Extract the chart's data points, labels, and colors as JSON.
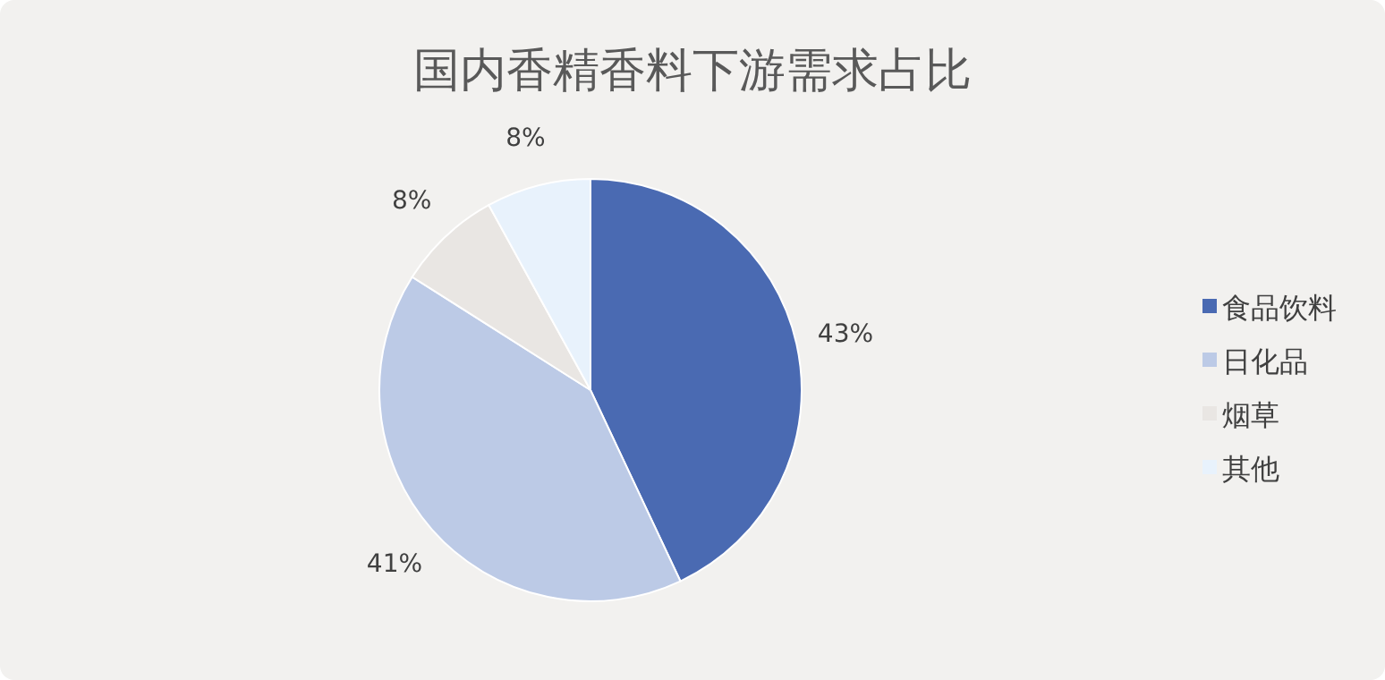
{
  "chart_data": {
    "type": "pie",
    "title": "国内香精香料下游需求占比",
    "categories": [
      "食品饮料",
      "日化品",
      "烟草",
      "其他"
    ],
    "values": [
      43,
      41,
      8,
      8
    ],
    "colors": [
      "#4a6ab2",
      "#bccae6",
      "#e9e6e3",
      "#e8f2fc"
    ],
    "value_labels": [
      "43%",
      "41%",
      "8%",
      "8%"
    ],
    "legend": "right"
  }
}
